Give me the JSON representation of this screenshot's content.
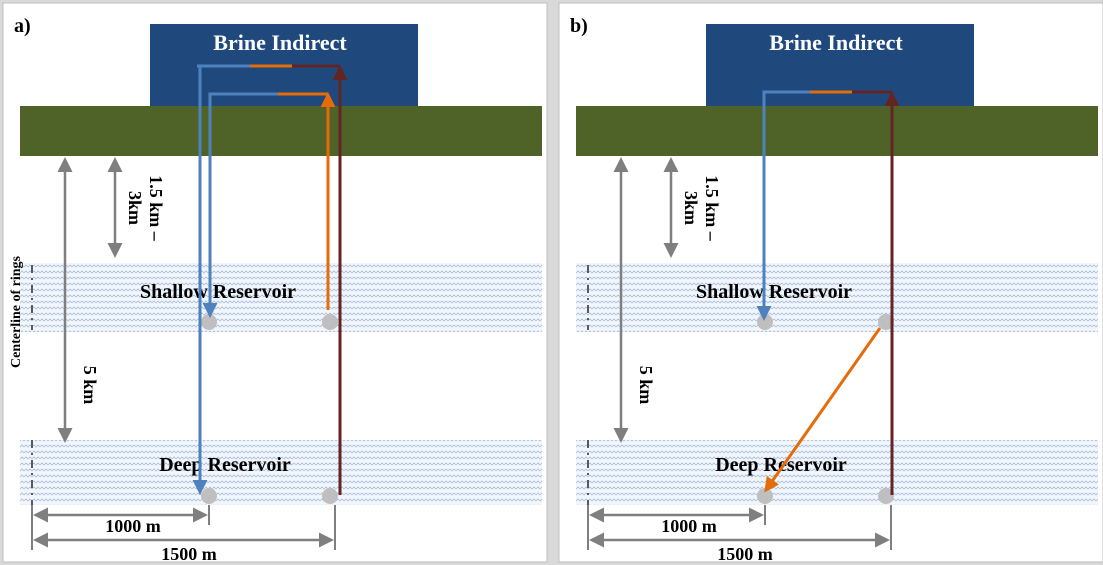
{
  "panels": [
    {
      "label": "a)",
      "box_title": "Brine Indirect",
      "shallow_label": "Shallow Reservoir",
      "deep_label": "Deep Reservoir",
      "depth_short": [
        "1.5 km –",
        "3km"
      ],
      "depth_long": "5 km",
      "dim_short": "1000 m",
      "dim_long": "1500 m",
      "centerline": "Centerline of rings"
    },
    {
      "label": "b)",
      "box_title": "Brine Indirect",
      "shallow_label": "Shallow Reservoir",
      "deep_label": "Deep Reservoir",
      "depth_short": [
        "1.5 km –",
        "3km"
      ],
      "depth_long": "5 km",
      "dim_short": "1000 m",
      "dim_long": "1500 m"
    }
  ]
}
